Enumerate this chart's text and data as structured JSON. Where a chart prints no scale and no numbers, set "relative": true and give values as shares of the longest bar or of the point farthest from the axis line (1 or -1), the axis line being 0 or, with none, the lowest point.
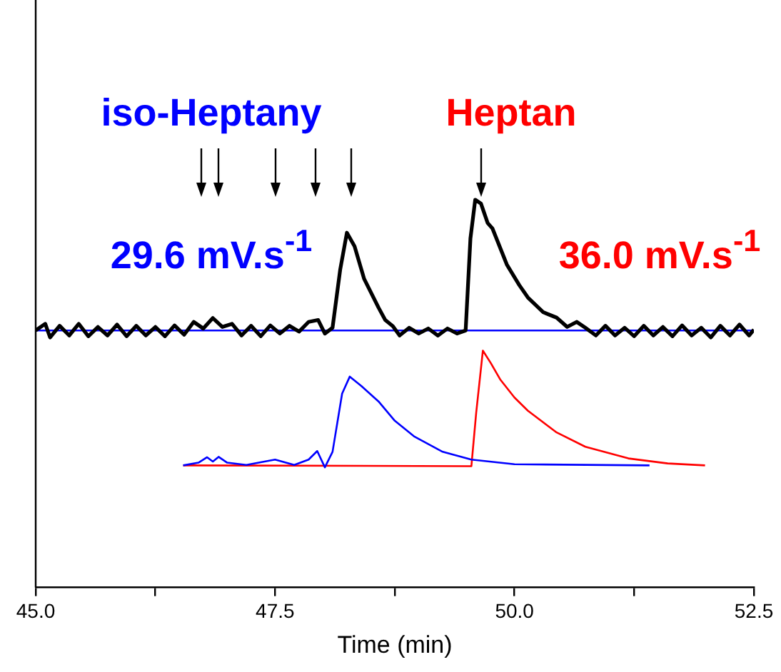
{
  "chart_data": {
    "type": "line",
    "relative": true,
    "xlabel": "Time (min)",
    "xlim": [
      45.0,
      52.5
    ],
    "xticks": [
      {
        "value": 45,
        "label": "45.0"
      },
      {
        "value": 46.25,
        "label": null
      },
      {
        "value": 47.5,
        "label": "47.5"
      },
      {
        "value": 48.75,
        "label": null
      },
      {
        "value": 50,
        "label": "50.0"
      },
      {
        "value": 51.25,
        "label": null
      },
      {
        "value": 52.5,
        "label": "52.5"
      }
    ],
    "grid": false,
    "legend": false,
    "marker": "none",
    "line_style": "solid",
    "annotations": [
      "iso-Heptany",
      "Heptan",
      "29.6 mV.s$^{-1}$",
      "36.0 mV.s$^{-1}$"
    ],
    "series": [
      {
        "color": "#000000",
        "x": [
          45.0,
          45.1,
          45.15,
          45.25,
          45.35,
          45.45,
          45.55,
          45.65,
          45.75,
          45.85,
          45.95,
          46.05,
          46.15,
          46.25,
          46.35,
          46.45,
          46.55,
          46.65,
          46.75,
          46.85,
          46.95,
          47.05,
          47.15,
          47.25,
          47.35,
          47.45,
          47.55,
          47.65,
          47.75,
          47.85,
          47.95,
          48.02,
          48.1,
          48.18,
          48.25,
          48.33,
          48.43,
          48.58,
          48.65,
          48.73,
          48.8,
          48.9,
          49.0,
          49.1,
          49.2,
          49.3,
          49.4,
          49.49,
          49.54,
          49.59,
          49.65,
          49.72,
          49.77,
          49.92,
          50.05,
          50.14,
          50.3,
          50.44,
          50.55,
          50.65,
          50.74,
          50.85,
          50.95,
          51.05,
          51.15,
          51.25,
          51.35,
          51.45,
          51.55,
          51.65,
          51.75,
          51.85,
          51.95,
          52.05,
          52.15,
          52.25,
          52.35,
          52.45,
          52.5
        ],
        "values": [
          0.663,
          0.68,
          0.645,
          0.675,
          0.65,
          0.68,
          0.648,
          0.672,
          0.65,
          0.678,
          0.648,
          0.675,
          0.65,
          0.672,
          0.648,
          0.676,
          0.652,
          0.685,
          0.668,
          0.695,
          0.672,
          0.68,
          0.65,
          0.675,
          0.648,
          0.676,
          0.655,
          0.675,
          0.66,
          0.685,
          0.69,
          0.655,
          0.67,
          0.82,
          0.915,
          0.88,
          0.796,
          0.722,
          0.69,
          0.674,
          0.65,
          0.67,
          0.655,
          0.668,
          0.65,
          0.668,
          0.655,
          0.663,
          0.9,
          1.0,
          0.99,
          0.94,
          0.926,
          0.833,
          0.78,
          0.748,
          0.71,
          0.696,
          0.672,
          0.685,
          0.67,
          0.65,
          0.675,
          0.65,
          0.67,
          0.648,
          0.675,
          0.65,
          0.672,
          0.648,
          0.676,
          0.65,
          0.67,
          0.645,
          0.675,
          0.65,
          0.678,
          0.65,
          0.665
        ]
      },
      {
        "color": "#0000ff",
        "x": [
          45.0,
          52.5
        ],
        "values": [
          0.663,
          0.663
        ]
      },
      {
        "color": "#0000ff",
        "x": [
          46.54,
          46.7,
          46.79,
          46.85,
          46.91,
          47.0,
          47.2,
          47.5,
          47.7,
          47.85,
          47.94,
          48.02,
          48.1,
          48.2,
          48.28,
          48.4,
          48.58,
          48.75,
          48.95,
          49.25,
          49.55,
          50.0,
          51.41
        ],
        "values": [
          0.315,
          0.322,
          0.336,
          0.325,
          0.337,
          0.322,
          0.316,
          0.33,
          0.316,
          0.33,
          0.352,
          0.31,
          0.35,
          0.5,
          0.544,
          0.52,
          0.48,
          0.43,
          0.39,
          0.35,
          0.33,
          0.318,
          0.315
        ]
      },
      {
        "color": "#ff0000",
        "x": [
          46.54,
          49.55,
          49.6,
          49.67,
          49.75,
          49.85,
          50.0,
          50.14,
          50.44,
          50.74,
          51.19,
          51.6,
          51.99
        ],
        "values": [
          0.315,
          0.313,
          0.45,
          0.611,
          0.58,
          0.537,
          0.49,
          0.456,
          0.4,
          0.363,
          0.333,
          0.32,
          0.315
        ]
      }
    ]
  }
}
